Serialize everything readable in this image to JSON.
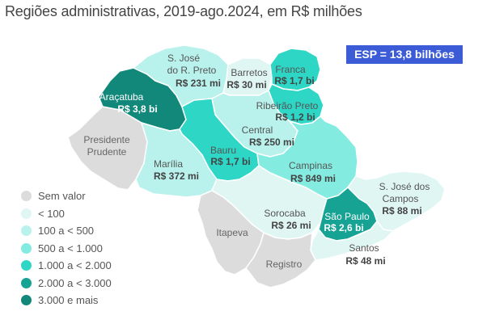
{
  "subtitle": "Regiões administrativas, 2019-ago.2024, em R$ milhões",
  "total_badge": "ESP = 13,8 bilhões",
  "colors": {
    "sem_valor": "#dcdcdc",
    "lt100": "#dff6f3",
    "b100_500": "#b9f2ec",
    "b500_1000": "#84ebe1",
    "b1000_2000": "#2ed6c6",
    "b2000_3000": "#16a394",
    "gte3000": "#12887a",
    "badge": "#3c5bd6"
  },
  "regions": {
    "aracatuba": {
      "name": "Araçatuba",
      "value": "R$ 3,8 bi"
    },
    "sjrp": {
      "name_line1": "S. José",
      "name_line2": "do R. Preto",
      "value": "R$ 231 mi"
    },
    "barretos": {
      "name": "Barretos",
      "value": "R$ 30 mi"
    },
    "franca": {
      "name": "Franca",
      "value": "R$ 1,7 bi"
    },
    "ribeirao": {
      "name": "Ribeirão Preto",
      "value": "R$ 1,2 bi"
    },
    "central": {
      "name": "Central",
      "value": "R$ 250 mi"
    },
    "bauru": {
      "name": "Bauru",
      "value": "R$ 1,7 bi"
    },
    "pres_prudente": {
      "name_line1": "Presidente",
      "name_line2": "Prudente"
    },
    "marilia": {
      "name": "Marília",
      "value": "R$ 372 mi"
    },
    "campinas": {
      "name": "Campinas",
      "value": "R$ 849 mi"
    },
    "sjc": {
      "name_line1": "S. José dos",
      "name_line2": "Campos",
      "value": "R$ 88 mi"
    },
    "sorocaba": {
      "name": "Sorocaba",
      "value": "R$ 26 mi"
    },
    "sao_paulo": {
      "name": "São Paulo",
      "value": "R$ 2,6 bi"
    },
    "itapeva": {
      "name": "Itapeva"
    },
    "registro": {
      "name": "Registro"
    },
    "santos": {
      "name": "Santos",
      "value": "R$ 48 mi"
    }
  },
  "legend": [
    {
      "label": "Sem valor",
      "color": "#dcdcdc"
    },
    {
      "label": "< 100",
      "color": "#dff6f3"
    },
    {
      "label": "100 a < 500",
      "color": "#b9f2ec"
    },
    {
      "label": "500 a < 1.000",
      "color": "#84ebe1"
    },
    {
      "label": "1.000 a < 2.000",
      "color": "#2ed6c6"
    },
    {
      "label": "2.000 a < 3.000",
      "color": "#16a394"
    },
    {
      "label": "3.000 e mais",
      "color": "#12887a"
    }
  ]
}
